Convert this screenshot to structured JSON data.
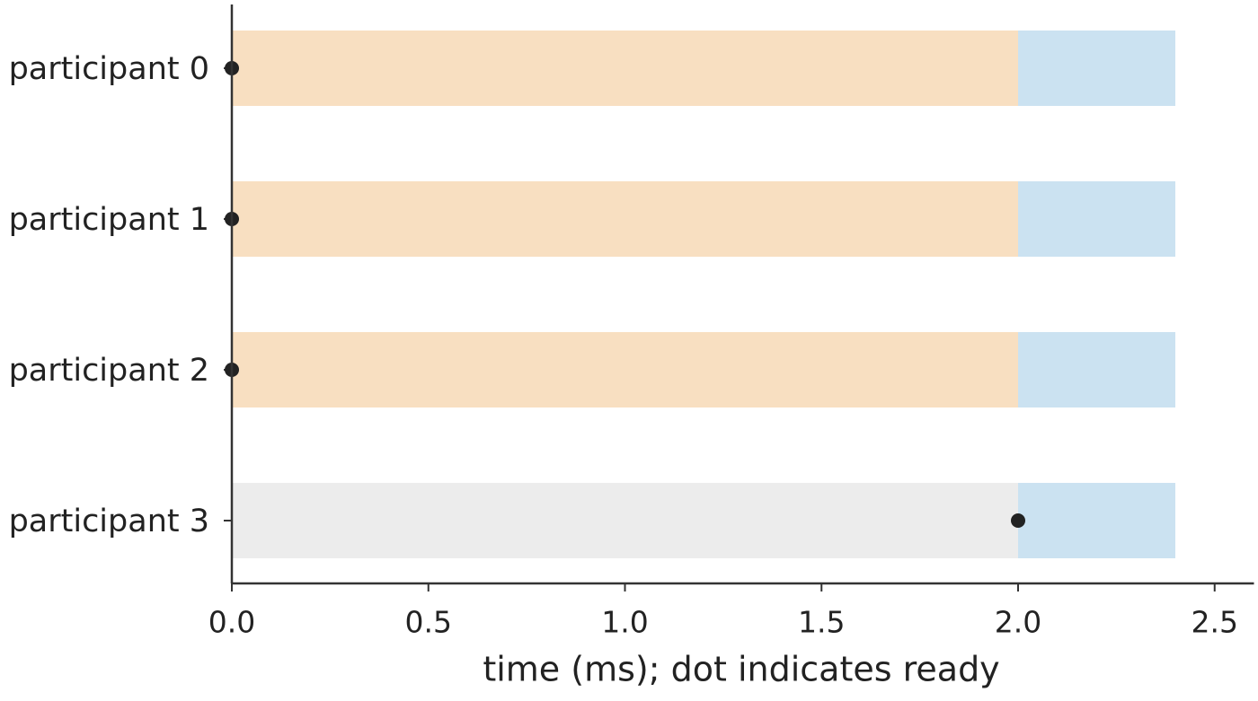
{
  "chart_data": {
    "type": "bar",
    "orientation": "horizontal",
    "stacked": true,
    "categories": [
      "participant 0",
      "participant 1",
      "participant 2",
      "participant 3"
    ],
    "series": [
      {
        "values": [
          2.0,
          2.0,
          2.0,
          2.0
        ],
        "colors": [
          "#f8dfc1",
          "#f8dfc1",
          "#f8dfc1",
          "#ececec"
        ]
      },
      {
        "values": [
          0.4,
          0.4,
          0.4,
          0.4
        ],
        "color": "#cbe2f1"
      }
    ],
    "markers": {
      "values": [
        0,
        0,
        0,
        2.0
      ],
      "color": "#222222"
    },
    "xlabel": "time (ms); dot indicates ready",
    "xlim": [
      0,
      2.6
    ],
    "xticks": [
      {
        "value": 0,
        "label": "0.0"
      },
      0.5,
      {
        "value": 1,
        "label": "1.0"
      },
      1.5,
      {
        "value": 2,
        "label": "2.0"
      },
      2.5
    ],
    "grid": false
  }
}
